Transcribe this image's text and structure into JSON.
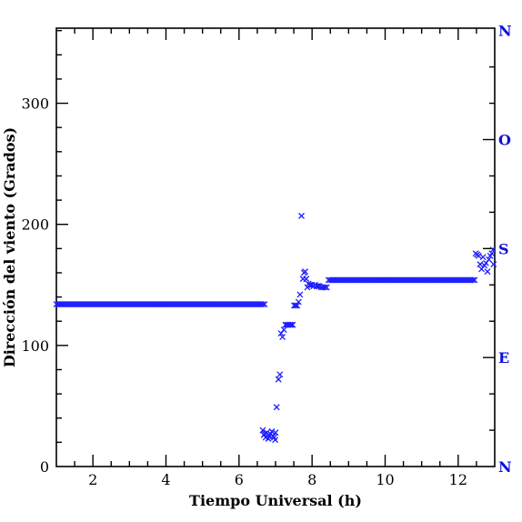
{
  "chart_data": {
    "type": "scatter",
    "title": "",
    "xlabel": "Tiempo Universal (h)",
    "ylabel": "Dirección del viento (Grados)",
    "xlim": [
      1,
      13
    ],
    "ylim": [
      0,
      362
    ],
    "x_ticks": [
      2,
      4,
      6,
      8,
      10,
      12
    ],
    "y_ticks": [
      0,
      100,
      200,
      300
    ],
    "x_tick_labels": [
      "2",
      "4",
      "6",
      "8",
      "10",
      "12"
    ],
    "y_tick_labels": [
      "0",
      "100",
      "200",
      "300"
    ],
    "right_axis_labels": [
      {
        "label": "N",
        "value": 360
      },
      {
        "label": "O",
        "value": 270
      },
      {
        "label": "S",
        "value": 180
      },
      {
        "label": "E",
        "value": 90
      },
      {
        "label": "N",
        "value": 0
      }
    ],
    "grid": false,
    "marker": "x",
    "colors": {
      "points": "#1f1fff",
      "right_axis": "#1010dd",
      "axes": "#000000"
    },
    "series": [
      {
        "segments": [
          {
            "x_start": 1.0,
            "x_end": 6.7,
            "step": 0.05,
            "y": 134
          },
          {
            "x_start": 8.45,
            "x_end": 12.45,
            "step": 0.05,
            "y": 154
          }
        ],
        "points": [
          [
            6.65,
            30
          ],
          [
            6.68,
            26
          ],
          [
            6.7,
            27
          ],
          [
            6.73,
            24
          ],
          [
            6.76,
            28
          ],
          [
            6.8,
            23
          ],
          [
            6.83,
            25
          ],
          [
            6.86,
            27
          ],
          [
            6.9,
            29
          ],
          [
            6.93,
            25
          ],
          [
            6.96,
            24
          ],
          [
            6.99,
            22
          ],
          [
            7.0,
            28
          ],
          [
            7.03,
            49
          ],
          [
            7.08,
            72
          ],
          [
            7.12,
            76
          ],
          [
            7.15,
            110
          ],
          [
            7.19,
            107
          ],
          [
            7.23,
            113
          ],
          [
            7.27,
            117
          ],
          [
            7.31,
            117
          ],
          [
            7.35,
            117
          ],
          [
            7.39,
            117
          ],
          [
            7.43,
            117
          ],
          [
            7.47,
            117
          ],
          [
            7.51,
            133
          ],
          [
            7.55,
            133
          ],
          [
            7.59,
            133
          ],
          [
            7.63,
            136
          ],
          [
            7.67,
            142
          ],
          [
            7.71,
            207
          ],
          [
            7.75,
            155
          ],
          [
            7.78,
            160
          ],
          [
            7.81,
            161
          ],
          [
            7.84,
            155
          ],
          [
            7.87,
            148
          ],
          [
            7.9,
            151
          ],
          [
            7.93,
            150
          ],
          [
            7.96,
            150
          ],
          [
            8.0,
            150
          ],
          [
            8.04,
            149
          ],
          [
            8.08,
            150
          ],
          [
            8.12,
            149
          ],
          [
            8.16,
            149
          ],
          [
            8.2,
            149
          ],
          [
            8.25,
            148
          ],
          [
            8.3,
            148
          ],
          [
            8.35,
            148
          ],
          [
            8.4,
            148
          ],
          [
            12.48,
            176
          ],
          [
            12.52,
            175
          ],
          [
            12.56,
            174
          ],
          [
            12.6,
            167
          ],
          [
            12.64,
            163
          ],
          [
            12.68,
            173
          ],
          [
            12.72,
            166
          ],
          [
            12.76,
            168
          ],
          [
            12.8,
            161
          ],
          [
            12.84,
            171
          ],
          [
            12.88,
            174
          ],
          [
            12.92,
            176
          ],
          [
            12.95,
            179
          ],
          [
            12.97,
            167
          ]
        ]
      }
    ]
  }
}
